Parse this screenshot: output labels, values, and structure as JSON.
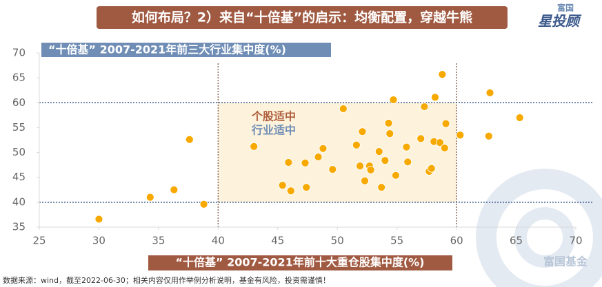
{
  "header": {
    "title": "如何布局？2）来自“十倍基”的启示：均衡配置，穿越牛熊",
    "logo_top": "富国",
    "logo_main": "星投顾"
  },
  "chart_data": {
    "type": "scatter",
    "y_label": "“十倍基” 2007-2021年前三大行业集中度(%)",
    "x_label": "“十倍基” 2007-2021年前十大重仓股集中度(%)",
    "annotations": [
      {
        "text": "个股适中",
        "color": "#b0603f"
      },
      {
        "text": "行业适中",
        "color": "#6f8db5"
      }
    ],
    "color": "#f7a900",
    "x": [
      30,
      34.3,
      36.3,
      37.6,
      38.8,
      43.0,
      45.4,
      45.9,
      46.1,
      47.3,
      47.4,
      48.4,
      48.8,
      49.6,
      50.5,
      51.6,
      51.9,
      52.1,
      52.3,
      52.7,
      52.8,
      53.5,
      53.7,
      54.0,
      54.3,
      54.4,
      54.7,
      54.9,
      55.8,
      55.9,
      57.0,
      57.3,
      57.7,
      57.9,
      58.1,
      58.2,
      58.6,
      58.8,
      59.0,
      59.1,
      60.3,
      62.7,
      62.8,
      65.3
    ],
    "values": [
      36.6,
      41.0,
      42.5,
      52.6,
      39.6,
      51.2,
      43.4,
      48.0,
      42.3,
      47.9,
      43.0,
      49.1,
      50.8,
      46.6,
      58.8,
      51.5,
      47.3,
      54.2,
      44.3,
      47.3,
      46.5,
      50.2,
      43.0,
      48.4,
      55.9,
      53.8,
      60.6,
      45.4,
      51.1,
      48.1,
      52.8,
      59.2,
      46.2,
      46.8,
      52.2,
      61.1,
      52.0,
      65.7,
      50.9,
      55.8,
      53.5,
      53.3,
      62.0,
      57.0
    ],
    "xlim": [
      25,
      70
    ],
    "ylim": [
      35,
      70
    ],
    "xticks": [
      25,
      30,
      35,
      40,
      45,
      50,
      55,
      60,
      65,
      70
    ],
    "yticks": [
      35,
      40,
      45,
      50,
      55,
      60,
      65,
      70
    ],
    "highlight_region": {
      "x": [
        40,
        60
      ],
      "y": [
        40,
        60
      ],
      "color": "#fdf3dc"
    }
  },
  "footer": {
    "source": "数据来源：wind，截至2022-06-30；相关内容仅用作举例分析说明，基金有风险，投资需谨慎！",
    "watermark": "富国基金"
  }
}
